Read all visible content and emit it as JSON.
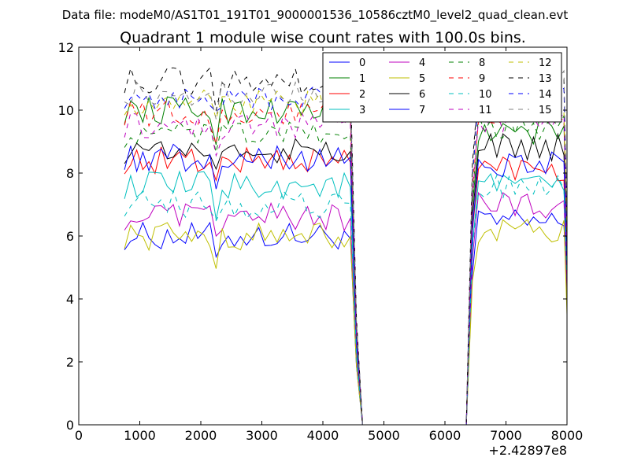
{
  "chart_data": {
    "type": "line",
    "super_title": "Data file: modeM0/AS1T01_191T01_9000001536_10586cztM0_level2_quad_clean.evt",
    "title": "Quadrant 1 module wise count rates with 100.0s bins.",
    "xlabel": "",
    "ylabel": "",
    "x_offset_label": "+2.42897e8",
    "xlim": [
      0,
      8000
    ],
    "ylim": [
      0,
      12
    ],
    "xticks": [
      0,
      1000,
      2000,
      3000,
      4000,
      5000,
      6000,
      7000,
      8000
    ],
    "xtick_labels": [
      "0",
      "1000",
      "2000",
      "3000",
      "4000",
      "5000",
      "6000",
      "7000",
      "8000"
    ],
    "yticks": [
      0,
      2,
      4,
      6,
      8,
      10,
      12
    ],
    "ytick_labels": [
      "0",
      "2",
      "4",
      "6",
      "8",
      "10",
      "12"
    ],
    "legend_position": "top-right",
    "legend_columns": 4,
    "segments": [
      {
        "x_start": 750,
        "x_end": 4450,
        "step": 100
      },
      {
        "x_start": 6350,
        "x_end": 7950,
        "step": 100
      }
    ],
    "gap_drop": [
      {
        "x": 4550,
        "value": 2.5
      },
      {
        "x": 4650,
        "value": 0
      },
      {
        "x": 6350,
        "value": 0
      }
    ],
    "series": [
      {
        "name": "0",
        "color": "#0000ff",
        "dashed": false,
        "level": 6.0,
        "level2": 6.4,
        "end": 4.6
      },
      {
        "name": "1",
        "color": "#008000",
        "dashed": false,
        "level": 10.0,
        "level2": 9.3,
        "end": 6.2
      },
      {
        "name": "2",
        "color": "#ff0000",
        "dashed": false,
        "level": 8.4,
        "level2": 8.2,
        "end": 4.3
      },
      {
        "name": "3",
        "color": "#00bfbf",
        "dashed": false,
        "level": 7.6,
        "level2": 7.6,
        "end": 4.8
      },
      {
        "name": "4",
        "color": "#bf00bf",
        "dashed": false,
        "level": 6.6,
        "level2": 7.0,
        "end": 4.2
      },
      {
        "name": "5",
        "color": "#bfbf00",
        "dashed": false,
        "level": 6.0,
        "level2": 6.1,
        "end": 3.5
      },
      {
        "name": "6",
        "color": "#000000",
        "dashed": false,
        "level": 8.7,
        "level2": 8.8,
        "end": 5.5
      },
      {
        "name": "7",
        "color": "#0000ff",
        "dashed": false,
        "level": 8.5,
        "level2": 8.3,
        "end": 5.0
      },
      {
        "name": "8",
        "color": "#008000",
        "dashed": true,
        "level": 9.2,
        "level2": 9.5,
        "end": 5.8
      },
      {
        "name": "9",
        "color": "#ff0000",
        "dashed": true,
        "level": 9.9,
        "level2": 10.0,
        "end": 6.0
      },
      {
        "name": "10",
        "color": "#00bfbf",
        "dashed": true,
        "level": 7.0,
        "level2": 7.5,
        "end": 4.6
      },
      {
        "name": "11",
        "color": "#bf00bf",
        "dashed": true,
        "level": 9.5,
        "level2": 9.6,
        "end": 5.4
      },
      {
        "name": "12",
        "color": "#bfbf00",
        "dashed": true,
        "level": 10.2,
        "level2": 10.3,
        "end": 6.0
      },
      {
        "name": "13",
        "color": "#000000",
        "dashed": true,
        "level": 10.9,
        "level2": 11.1,
        "end": 6.5
      },
      {
        "name": "14",
        "color": "#0000ff",
        "dashed": true,
        "level": 10.4,
        "level2": 10.5,
        "end": 6.2
      },
      {
        "name": "15",
        "color": "#808080",
        "dashed": true,
        "level": 10.6,
        "level2": 10.8,
        "end": 6.4
      }
    ]
  }
}
